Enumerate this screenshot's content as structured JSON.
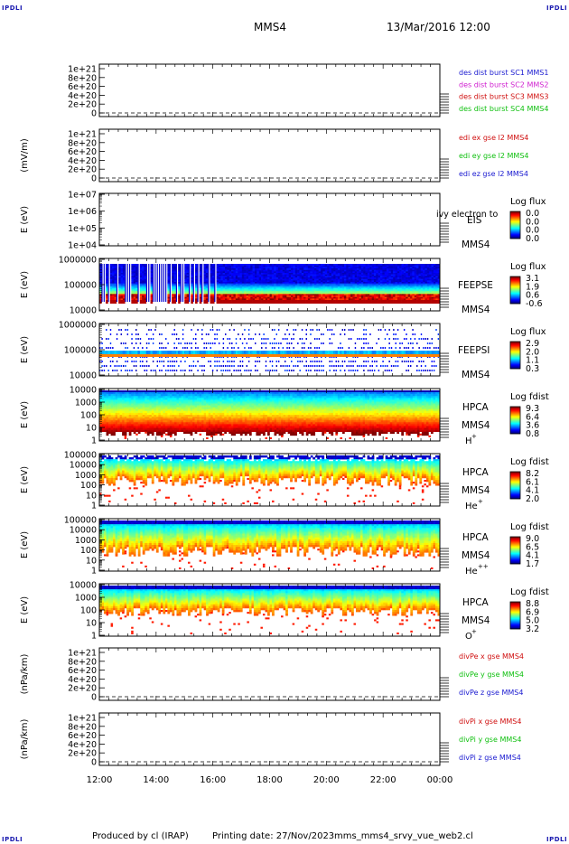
{
  "header": {
    "corner_tl": "IPDLI",
    "corner_tr": "IPDLI",
    "corner_bl": "IPDLI",
    "corner_br": "IPDLI",
    "spacecraft": "MMS4",
    "datetime": "13/Mar/2016 12:00"
  },
  "footer": {
    "produced": "Produced by cl (IRAP)",
    "printing": "Printing date: 27/Nov/2023",
    "script": "mms_mms4_srvy_vue_web2.cl"
  },
  "chart_data": [
    {
      "type": "line",
      "panel": "des-dist",
      "ylabel": "",
      "yticks": [
        "1e+21",
        "8e+20",
        "6e+20",
        "4e+20",
        "2e+20",
        "0"
      ],
      "series": [
        {
          "name": "des dist burst SC1 MMS1",
          "color": "#1a1ad0"
        },
        {
          "name": "des dist burst SC2 MMS2",
          "color": "#d020d0"
        },
        {
          "name": "des dist burst SC3 MMS3",
          "color": "#d01010"
        },
        {
          "name": "des dist burst SC4 MMS4",
          "color": "#10c010"
        }
      ]
    },
    {
      "type": "line",
      "panel": "edi-e",
      "ylabel": "(mV/m)",
      "yticks": [
        "1e+21",
        "8e+20",
        "6e+20",
        "4e+20",
        "2e+20",
        "0"
      ],
      "series": [
        {
          "name": "edi ex gse l2 MMS4",
          "color": "#d01010"
        },
        {
          "name": "edi ey gse l2 MMS4",
          "color": "#10c010"
        },
        {
          "name": "edi ez gse l2 MMS4",
          "color": "#1a1ad0"
        }
      ]
    },
    {
      "type": "heatmap",
      "panel": "eis",
      "ylabel": "E (eV)",
      "yticks": [
        "1e+07",
        "1e+06",
        "1e+05",
        "1e+04"
      ],
      "instrument": "EIS",
      "spacecraft": "MMS4",
      "overlay": "ivy electron to",
      "colorbar_title": "Log flux",
      "colorbar_ticks": [
        "0.0",
        "0.0",
        "0.0",
        "0.0"
      ],
      "empty": true
    },
    {
      "type": "heatmap",
      "panel": "feeps-e",
      "ylabel": "E (eV)",
      "yticks": [
        "1000000",
        "100000",
        "10000"
      ],
      "instrument": "FEEPSE",
      "spacecraft": "MMS4",
      "colorbar_title": "Log flux",
      "colorbar_ticks": [
        "3.1",
        "1.9",
        "0.6",
        "-0.6"
      ]
    },
    {
      "type": "heatmap",
      "panel": "feeps-i",
      "ylabel": "E (eV)",
      "yticks": [
        "1000000",
        "100000",
        "10000"
      ],
      "instrument": "FEEPSI",
      "spacecraft": "MMS4",
      "colorbar_title": "Log flux",
      "colorbar_ticks": [
        "2.9",
        "2.0",
        "1.1",
        "0.3"
      ]
    },
    {
      "type": "heatmap",
      "panel": "hpca-h",
      "ylabel": "E (eV)",
      "yticks": [
        "10000",
        "1000",
        "100",
        "10",
        "1"
      ],
      "instrument": "HPCA",
      "spacecraft": "MMS4",
      "species": "H",
      "species_sup": "+",
      "colorbar_title": "Log fdist",
      "colorbar_ticks": [
        "9.3",
        "6.4",
        "3.6",
        "0.8"
      ]
    },
    {
      "type": "heatmap",
      "panel": "hpca-he",
      "ylabel": "E (eV)",
      "yticks": [
        "100000",
        "10000",
        "1000",
        "100",
        "10",
        "1"
      ],
      "instrument": "HPCA",
      "spacecraft": "MMS4",
      "species": "He",
      "species_sup": "+",
      "colorbar_title": "Log fdist",
      "colorbar_ticks": [
        "8.2",
        "6.1",
        "4.1",
        "2.0"
      ]
    },
    {
      "type": "heatmap",
      "panel": "hpca-hepp",
      "ylabel": "E (eV)",
      "yticks": [
        "100000",
        "10000",
        "1000",
        "100",
        "10",
        "1"
      ],
      "instrument": "HPCA",
      "spacecraft": "MMS4",
      "species": "He",
      "species_sup": "++",
      "colorbar_title": "Log fdist",
      "colorbar_ticks": [
        "9.0",
        "6.5",
        "4.1",
        "1.7"
      ]
    },
    {
      "type": "heatmap",
      "panel": "hpca-o",
      "ylabel": "E (eV)",
      "yticks": [
        "10000",
        "1000",
        "100",
        "10",
        "1"
      ],
      "instrument": "HPCA",
      "spacecraft": "MMS4",
      "species": "O",
      "species_sup": "+",
      "colorbar_title": "Log fdist",
      "colorbar_ticks": [
        "8.8",
        "6.9",
        "5.0",
        "3.2"
      ]
    },
    {
      "type": "line",
      "panel": "divpe",
      "ylabel": "(nPa/km)",
      "yticks": [
        "1e+21",
        "8e+20",
        "6e+20",
        "4e+20",
        "2e+20",
        "0"
      ],
      "series": [
        {
          "name": "divPe x gse MMS4",
          "color": "#d01010"
        },
        {
          "name": "divPe y gse MMS4",
          "color": "#10c010"
        },
        {
          "name": "divPe z gse MMS4",
          "color": "#1a1ad0"
        }
      ]
    },
    {
      "type": "line",
      "panel": "divpi",
      "ylabel": "(nPa/km)",
      "yticks": [
        "1e+21",
        "8e+20",
        "6e+20",
        "4e+20",
        "2e+20",
        "0"
      ],
      "series": [
        {
          "name": "divPi x gse MMS4",
          "color": "#d01010"
        },
        {
          "name": "divPi y gse MMS4",
          "color": "#10c010"
        },
        {
          "name": "divPi z gse MMS4",
          "color": "#1a1ad0"
        }
      ]
    }
  ],
  "x_axis": {
    "ticks": [
      "12:00",
      "14:00",
      "16:00",
      "18:00",
      "20:00",
      "22:00",
      "00:00"
    ]
  }
}
